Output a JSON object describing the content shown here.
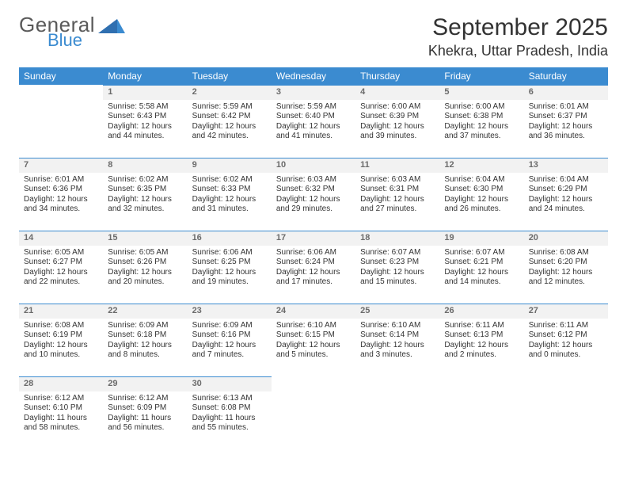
{
  "branding": {
    "text1": "General",
    "text2": "Blue"
  },
  "title": "September 2025",
  "location": "Khekra, Uttar Pradesh, India",
  "colors": {
    "header_bg": "#3b8bd0",
    "daynum_bg": "#f2f2f2",
    "daynum_border": "#3b8bd0",
    "text": "#333333"
  },
  "day_headers": [
    "Sunday",
    "Monday",
    "Tuesday",
    "Wednesday",
    "Thursday",
    "Friday",
    "Saturday"
  ],
  "weeks": [
    [
      null,
      {
        "n": "1",
        "sunrise": "Sunrise: 5:58 AM",
        "sunset": "Sunset: 6:43 PM",
        "daylight": "Daylight: 12 hours and 44 minutes."
      },
      {
        "n": "2",
        "sunrise": "Sunrise: 5:59 AM",
        "sunset": "Sunset: 6:42 PM",
        "daylight": "Daylight: 12 hours and 42 minutes."
      },
      {
        "n": "3",
        "sunrise": "Sunrise: 5:59 AM",
        "sunset": "Sunset: 6:40 PM",
        "daylight": "Daylight: 12 hours and 41 minutes."
      },
      {
        "n": "4",
        "sunrise": "Sunrise: 6:00 AM",
        "sunset": "Sunset: 6:39 PM",
        "daylight": "Daylight: 12 hours and 39 minutes."
      },
      {
        "n": "5",
        "sunrise": "Sunrise: 6:00 AM",
        "sunset": "Sunset: 6:38 PM",
        "daylight": "Daylight: 12 hours and 37 minutes."
      },
      {
        "n": "6",
        "sunrise": "Sunrise: 6:01 AM",
        "sunset": "Sunset: 6:37 PM",
        "daylight": "Daylight: 12 hours and 36 minutes."
      }
    ],
    [
      {
        "n": "7",
        "sunrise": "Sunrise: 6:01 AM",
        "sunset": "Sunset: 6:36 PM",
        "daylight": "Daylight: 12 hours and 34 minutes."
      },
      {
        "n": "8",
        "sunrise": "Sunrise: 6:02 AM",
        "sunset": "Sunset: 6:35 PM",
        "daylight": "Daylight: 12 hours and 32 minutes."
      },
      {
        "n": "9",
        "sunrise": "Sunrise: 6:02 AM",
        "sunset": "Sunset: 6:33 PM",
        "daylight": "Daylight: 12 hours and 31 minutes."
      },
      {
        "n": "10",
        "sunrise": "Sunrise: 6:03 AM",
        "sunset": "Sunset: 6:32 PM",
        "daylight": "Daylight: 12 hours and 29 minutes."
      },
      {
        "n": "11",
        "sunrise": "Sunrise: 6:03 AM",
        "sunset": "Sunset: 6:31 PM",
        "daylight": "Daylight: 12 hours and 27 minutes."
      },
      {
        "n": "12",
        "sunrise": "Sunrise: 6:04 AM",
        "sunset": "Sunset: 6:30 PM",
        "daylight": "Daylight: 12 hours and 26 minutes."
      },
      {
        "n": "13",
        "sunrise": "Sunrise: 6:04 AM",
        "sunset": "Sunset: 6:29 PM",
        "daylight": "Daylight: 12 hours and 24 minutes."
      }
    ],
    [
      {
        "n": "14",
        "sunrise": "Sunrise: 6:05 AM",
        "sunset": "Sunset: 6:27 PM",
        "daylight": "Daylight: 12 hours and 22 minutes."
      },
      {
        "n": "15",
        "sunrise": "Sunrise: 6:05 AM",
        "sunset": "Sunset: 6:26 PM",
        "daylight": "Daylight: 12 hours and 20 minutes."
      },
      {
        "n": "16",
        "sunrise": "Sunrise: 6:06 AM",
        "sunset": "Sunset: 6:25 PM",
        "daylight": "Daylight: 12 hours and 19 minutes."
      },
      {
        "n": "17",
        "sunrise": "Sunrise: 6:06 AM",
        "sunset": "Sunset: 6:24 PM",
        "daylight": "Daylight: 12 hours and 17 minutes."
      },
      {
        "n": "18",
        "sunrise": "Sunrise: 6:07 AM",
        "sunset": "Sunset: 6:23 PM",
        "daylight": "Daylight: 12 hours and 15 minutes."
      },
      {
        "n": "19",
        "sunrise": "Sunrise: 6:07 AM",
        "sunset": "Sunset: 6:21 PM",
        "daylight": "Daylight: 12 hours and 14 minutes."
      },
      {
        "n": "20",
        "sunrise": "Sunrise: 6:08 AM",
        "sunset": "Sunset: 6:20 PM",
        "daylight": "Daylight: 12 hours and 12 minutes."
      }
    ],
    [
      {
        "n": "21",
        "sunrise": "Sunrise: 6:08 AM",
        "sunset": "Sunset: 6:19 PM",
        "daylight": "Daylight: 12 hours and 10 minutes."
      },
      {
        "n": "22",
        "sunrise": "Sunrise: 6:09 AM",
        "sunset": "Sunset: 6:18 PM",
        "daylight": "Daylight: 12 hours and 8 minutes."
      },
      {
        "n": "23",
        "sunrise": "Sunrise: 6:09 AM",
        "sunset": "Sunset: 6:16 PM",
        "daylight": "Daylight: 12 hours and 7 minutes."
      },
      {
        "n": "24",
        "sunrise": "Sunrise: 6:10 AM",
        "sunset": "Sunset: 6:15 PM",
        "daylight": "Daylight: 12 hours and 5 minutes."
      },
      {
        "n": "25",
        "sunrise": "Sunrise: 6:10 AM",
        "sunset": "Sunset: 6:14 PM",
        "daylight": "Daylight: 12 hours and 3 minutes."
      },
      {
        "n": "26",
        "sunrise": "Sunrise: 6:11 AM",
        "sunset": "Sunset: 6:13 PM",
        "daylight": "Daylight: 12 hours and 2 minutes."
      },
      {
        "n": "27",
        "sunrise": "Sunrise: 6:11 AM",
        "sunset": "Sunset: 6:12 PM",
        "daylight": "Daylight: 12 hours and 0 minutes."
      }
    ],
    [
      {
        "n": "28",
        "sunrise": "Sunrise: 6:12 AM",
        "sunset": "Sunset: 6:10 PM",
        "daylight": "Daylight: 11 hours and 58 minutes."
      },
      {
        "n": "29",
        "sunrise": "Sunrise: 6:12 AM",
        "sunset": "Sunset: 6:09 PM",
        "daylight": "Daylight: 11 hours and 56 minutes."
      },
      {
        "n": "30",
        "sunrise": "Sunrise: 6:13 AM",
        "sunset": "Sunset: 6:08 PM",
        "daylight": "Daylight: 11 hours and 55 minutes."
      },
      null,
      null,
      null,
      null
    ]
  ]
}
